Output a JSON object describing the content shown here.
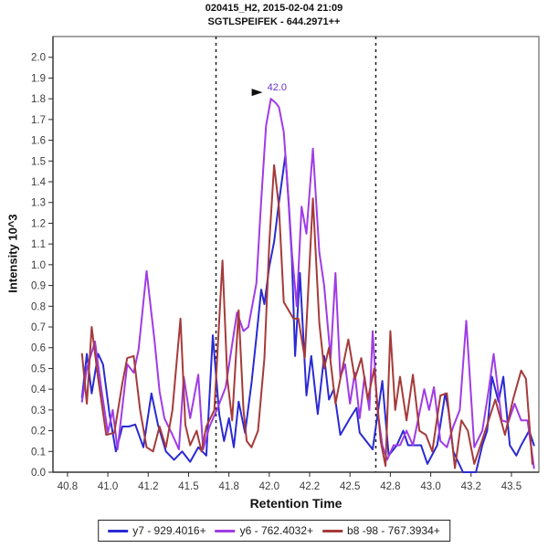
{
  "title": {
    "line1": "020415_H2, 2015-02-04 21:09",
    "line2": "SGTLSPEIFEK - 644.2971++"
  },
  "chart_data": {
    "type": "line",
    "title": "020415_H2, 2015-02-04 21:09 / SGTLSPEIFEK - 644.2971++",
    "xlabel": "Retention Time",
    "ylabel": "Intensity 10^3",
    "xlim": [
      40.66,
      43.67
    ],
    "ylim": [
      0,
      2.1
    ],
    "grid": false,
    "legend_position": "bottom",
    "x_ticks": {
      "values": [
        40.75,
        41.0,
        41.25,
        41.5,
        41.75,
        42.0,
        42.25,
        42.5,
        42.75,
        43.0,
        43.25,
        43.5
      ],
      "labels": [
        "40.8",
        "41.0",
        "41.2",
        "41.5",
        "41.8",
        "42.0",
        "42.2",
        "42.5",
        "42.8",
        "43.0",
        "43.2",
        "43.5"
      ]
    },
    "y_ticks": {
      "start": 0.0,
      "end": 2.0,
      "step": 0.1
    },
    "integration_boundaries": [
      41.67,
      42.66
    ],
    "annotation": {
      "text": "42.0",
      "rt": 42.01,
      "value": 1.8,
      "color": "#6633cc",
      "arrow_color": "#111111"
    },
    "series": [
      {
        "name": "y7 - 929.4016+",
        "color": "#2a2ad4",
        "x": [
          40.84,
          40.87,
          40.9,
          40.94,
          40.97,
          41.01,
          41.05,
          41.09,
          41.13,
          41.17,
          41.22,
          41.27,
          41.31,
          41.36,
          41.41,
          41.46,
          41.51,
          41.56,
          41.61,
          41.65,
          41.69,
          41.72,
          41.75,
          41.78,
          41.81,
          41.85,
          41.89,
          41.92,
          41.95,
          41.97,
          42.0,
          42.03,
          42.06,
          42.1,
          42.12,
          42.14,
          42.16,
          42.19,
          42.23,
          42.26,
          42.3,
          42.34,
          42.37,
          42.4,
          42.44,
          42.5,
          42.54,
          42.56,
          42.6,
          42.64,
          42.7,
          42.74,
          42.79,
          42.83,
          42.86,
          42.9,
          42.94,
          42.98,
          43.04,
          43.09,
          43.11,
          43.14,
          43.2,
          43.28,
          43.32,
          43.35,
          43.38,
          43.42,
          43.45,
          43.49,
          43.53,
          43.56,
          43.61,
          43.64
        ],
        "y": [
          0.36,
          0.57,
          0.38,
          0.57,
          0.52,
          0.28,
          0.1,
          0.22,
          0.22,
          0.23,
          0.12,
          0.38,
          0.23,
          0.1,
          0.06,
          0.1,
          0.05,
          0.12,
          0.08,
          0.66,
          0.28,
          0.15,
          0.26,
          0.12,
          0.34,
          0.19,
          0.43,
          0.65,
          0.88,
          0.81,
          0.99,
          1.11,
          1.3,
          1.53,
          1.3,
          1.03,
          0.56,
          0.96,
          0.37,
          0.56,
          0.28,
          0.56,
          0.35,
          0.4,
          0.18,
          0.26,
          0.31,
          0.19,
          0.15,
          0.11,
          0.44,
          0.08,
          0.13,
          0.2,
          0.13,
          0.13,
          0.13,
          0.04,
          0.13,
          0.38,
          0.3,
          0.1,
          0.0,
          0.0,
          0.13,
          0.2,
          0.46,
          0.34,
          0.46,
          0.13,
          0.08,
          0.13,
          0.2,
          0.13
        ]
      },
      {
        "name": "y6 - 762.4032+",
        "color": "#a03be6",
        "x": [
          40.84,
          40.87,
          40.92,
          40.96,
          41.0,
          41.03,
          41.06,
          41.12,
          41.16,
          41.19,
          41.24,
          41.29,
          41.32,
          41.35,
          41.4,
          41.44,
          41.47,
          41.51,
          41.56,
          41.59,
          41.63,
          41.68,
          41.73,
          41.8,
          41.84,
          41.87,
          41.92,
          41.95,
          41.98,
          42.01,
          42.04,
          42.06,
          42.09,
          42.12,
          42.14,
          42.17,
          42.2,
          42.23,
          42.27,
          42.31,
          42.34,
          42.38,
          42.41,
          42.44,
          42.47,
          42.5,
          42.53,
          42.56,
          42.59,
          42.62,
          42.64,
          42.67,
          42.7,
          42.73,
          42.77,
          42.81,
          42.85,
          42.89,
          42.96,
          42.99,
          43.02,
          43.06,
          43.1,
          43.14,
          43.18,
          43.22,
          43.27,
          43.32,
          43.36,
          43.39,
          43.44,
          43.48,
          43.52,
          43.56,
          43.6,
          43.64
        ],
        "y": [
          0.34,
          0.5,
          0.63,
          0.4,
          0.19,
          0.3,
          0.11,
          0.52,
          0.48,
          0.59,
          0.97,
          0.63,
          0.39,
          0.26,
          0.18,
          0.11,
          0.46,
          0.26,
          0.47,
          0.11,
          0.22,
          0.31,
          0.41,
          0.77,
          0.68,
          0.7,
          0.91,
          1.31,
          1.67,
          1.8,
          1.78,
          1.76,
          1.64,
          1.31,
          1.06,
          0.8,
          1.28,
          1.15,
          1.56,
          1.06,
          0.9,
          0.55,
          0.96,
          0.46,
          0.52,
          0.33,
          0.48,
          0.26,
          0.46,
          0.3,
          0.68,
          0.3,
          0.13,
          0.06,
          0.13,
          0.13,
          0.2,
          0.13,
          0.4,
          0.3,
          0.41,
          0.15,
          0.12,
          0.22,
          0.3,
          0.73,
          0.12,
          0.2,
          0.4,
          0.57,
          0.25,
          0.24,
          0.33,
          0.25,
          0.25,
          0.02
        ]
      },
      {
        "name": "b8 -98 - 767.3934+",
        "color": "#a63a3a",
        "x": [
          40.84,
          40.87,
          40.9,
          40.94,
          40.99,
          41.04,
          41.09,
          41.12,
          41.16,
          41.2,
          41.24,
          41.28,
          41.32,
          41.36,
          41.4,
          41.45,
          41.48,
          41.51,
          41.55,
          41.58,
          41.61,
          41.66,
          41.71,
          41.74,
          41.77,
          41.81,
          41.84,
          41.86,
          41.89,
          41.93,
          41.97,
          42.0,
          42.03,
          42.06,
          42.09,
          42.12,
          42.15,
          42.18,
          42.22,
          42.27,
          42.31,
          42.34,
          42.37,
          42.41,
          42.44,
          42.49,
          42.53,
          42.57,
          42.61,
          42.65,
          42.69,
          42.72,
          42.75,
          42.78,
          42.81,
          42.85,
          42.89,
          42.93,
          42.97,
          43.01,
          43.06,
          43.1,
          43.15,
          43.19,
          43.23,
          43.27,
          43.33,
          43.4,
          43.46,
          43.51,
          43.56,
          43.59,
          43.63
        ],
        "y": [
          0.57,
          0.33,
          0.7,
          0.45,
          0.18,
          0.19,
          0.43,
          0.55,
          0.56,
          0.3,
          0.12,
          0.1,
          0.22,
          0.12,
          0.3,
          0.74,
          0.23,
          0.13,
          0.2,
          0.1,
          0.22,
          0.3,
          1.02,
          0.45,
          0.25,
          0.78,
          0.3,
          0.15,
          0.12,
          0.2,
          0.55,
          1.1,
          1.48,
          1.28,
          0.82,
          0.78,
          0.74,
          0.74,
          0.55,
          1.32,
          0.72,
          0.5,
          0.6,
          0.33,
          0.45,
          0.64,
          0.45,
          0.55,
          0.35,
          0.5,
          0.15,
          0.03,
          0.68,
          0.3,
          0.46,
          0.25,
          0.47,
          0.2,
          0.18,
          0.1,
          0.37,
          0.38,
          0.02,
          0.25,
          0.2,
          0.04,
          0.18,
          0.35,
          0.18,
          0.35,
          0.49,
          0.45,
          0.04
        ]
      }
    ]
  }
}
